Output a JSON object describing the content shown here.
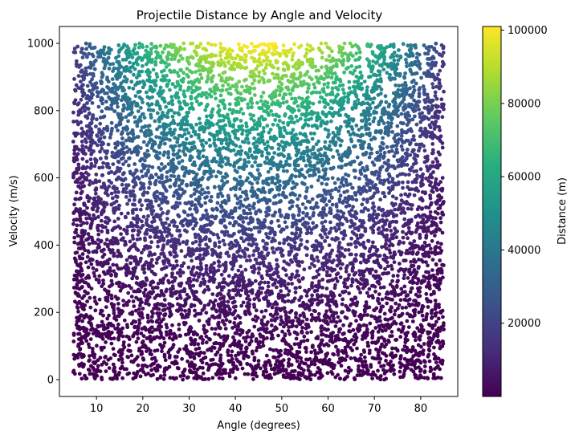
{
  "chart_data": {
    "type": "scatter",
    "title": "Projectile Distance by Angle and Velocity",
    "xlabel": "Angle (degrees)",
    "ylabel": "Velocity (m/s)",
    "xlim": [
      2,
      88
    ],
    "ylim": [
      -50,
      1050
    ],
    "xticks": [
      10,
      20,
      30,
      40,
      50,
      60,
      70,
      80
    ],
    "yticks": [
      0,
      200,
      400,
      600,
      800,
      1000
    ],
    "grid": false,
    "legend": "none",
    "colorbar": {
      "label": "Distance (m)",
      "range": [
        0,
        101000
      ],
      "ticks": [
        20000,
        40000,
        60000,
        80000,
        100000
      ],
      "colormap": "viridis"
    },
    "series": [
      {
        "x_range": [
          5,
          85
        ],
        "y_range": [
          0,
          1000
        ],
        "count": 8000,
        "color_value": "distance = velocity^2 * sin(2*angle) / 9.81"
      }
    ]
  }
}
